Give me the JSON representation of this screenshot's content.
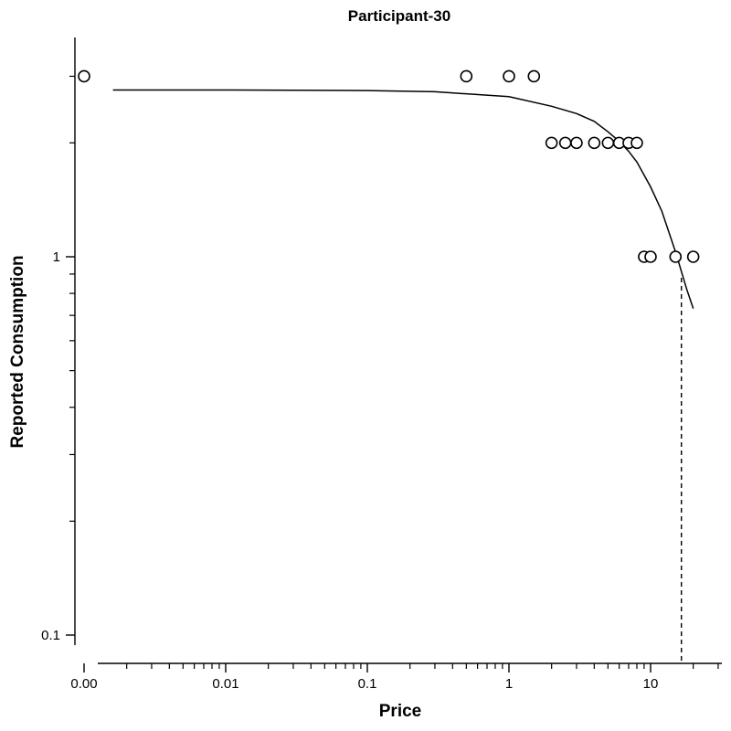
{
  "chart_data": {
    "type": "scatter",
    "title": "Participant-30",
    "xlabel": "Price",
    "ylabel": "Reported Consumption",
    "x_scale": "log",
    "y_scale": "log",
    "xlim": [
      0.0008,
      32
    ],
    "ylim": [
      0.085,
      3.2
    ],
    "x_tick_labels": [
      {
        "value": 0.001,
        "label": "0.00"
      },
      {
        "value": 0.01,
        "label": "0.01"
      },
      {
        "value": 0.1,
        "label": "0.1"
      },
      {
        "value": 1,
        "label": "1"
      },
      {
        "value": 10,
        "label": "10"
      }
    ],
    "y_tick_labels": [
      {
        "value": 0.1,
        "label": "0.1"
      },
      {
        "value": 1,
        "label": "1"
      }
    ],
    "points": {
      "x": [
        0.001,
        0.5,
        1,
        1.5,
        2,
        2.5,
        3,
        4,
        5,
        6,
        7,
        8,
        9,
        10,
        15,
        20
      ],
      "y": [
        3,
        3,
        3,
        3,
        2,
        2,
        2,
        2,
        2,
        2,
        2,
        2,
        1,
        1,
        1,
        1
      ]
    },
    "fit_curve": {
      "x": [
        0.0016,
        0.01,
        0.1,
        0.3,
        1,
        2,
        3,
        4,
        5,
        6,
        7,
        8,
        10,
        12,
        15,
        18,
        20
      ],
      "y": [
        2.76,
        2.76,
        2.75,
        2.73,
        2.65,
        2.5,
        2.39,
        2.28,
        2.14,
        2.02,
        1.9,
        1.78,
        1.53,
        1.32,
        1.03,
        0.82,
        0.73
      ]
    },
    "pmax_line": {
      "x": 16.5
    },
    "grid": false,
    "legend": "none"
  }
}
